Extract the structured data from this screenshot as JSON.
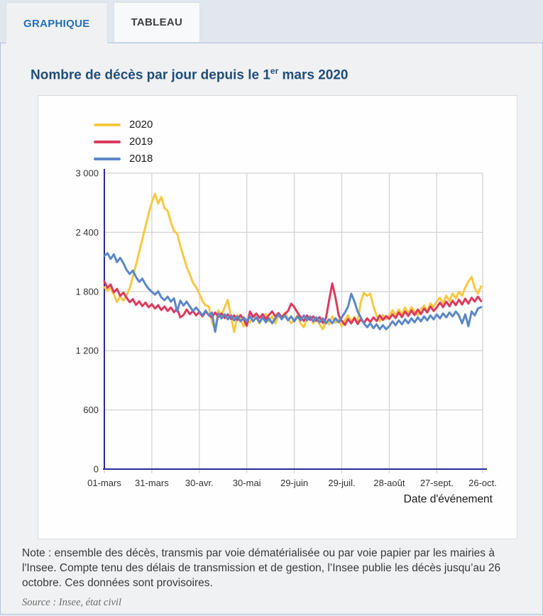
{
  "tabs": [
    {
      "label": "GRAPHIQUE",
      "active": true
    },
    {
      "label": "TABLEAU",
      "active": false
    }
  ],
  "title": {
    "prefix": "Nombre de décès par jour depuis le 1",
    "sup": "er",
    "suffix": " mars 2020"
  },
  "chart_data": {
    "type": "line",
    "title": "Nombre de décès par jour depuis le 1er mars 2020",
    "xlabel": "Date d'événement",
    "ylabel": "",
    "ylim": [
      0,
      3000
    ],
    "y_ticks": [
      0,
      600,
      1200,
      1800,
      2400,
      3000
    ],
    "y_tick_labels": [
      "0",
      "600",
      "1 200",
      "1 800",
      "2 400",
      "3 000"
    ],
    "x_tick_labels": [
      "01-mars",
      "31-mars",
      "30-avr.",
      "30-mai",
      "29-juin",
      "29-juil.",
      "28-août",
      "27-sept.",
      "26-oct."
    ],
    "x_tick_days": [
      0,
      30,
      60,
      90,
      120,
      150,
      180,
      210,
      239
    ],
    "x_total_days": 239,
    "sampling_note": "daily series sampled every 2 days from 01-mars to 26-oct (values estimated from gridlines)",
    "day_step": 2,
    "grid": true,
    "legend_position": "top-left",
    "axis_color": "#2b2b9c",
    "grid_color": "#d4d4d4",
    "series": [
      {
        "name": "2020",
        "color": "#f7c843",
        "values": [
          1843,
          1811,
          1836,
          1769,
          1694,
          1749,
          1707,
          1762,
          1832,
          1948,
          2072,
          2198,
          2331,
          2462,
          2590,
          2704,
          2789,
          2692,
          2758,
          2645,
          2618,
          2504,
          2416,
          2388,
          2262,
          2158,
          2047,
          1975,
          1888,
          1843,
          1781,
          1703,
          1658,
          1649,
          1489,
          1418,
          1611,
          1556,
          1640,
          1716,
          1548,
          1389,
          1562,
          1520,
          1447,
          1519,
          1487,
          1557,
          1536,
          1477,
          1528,
          1571,
          1498,
          1551,
          1476,
          1562,
          1528,
          1588,
          1527,
          1479,
          1512,
          1558,
          1477,
          1438,
          1521,
          1547,
          1478,
          1532,
          1468,
          1417,
          1501,
          1467,
          1548,
          1482,
          1517,
          1449,
          1511,
          1558,
          1496,
          1540,
          1483,
          1698,
          1787,
          1756,
          1779,
          1652,
          1557,
          1498,
          1562,
          1518,
          1558,
          1609,
          1557,
          1617,
          1568,
          1638,
          1577,
          1641,
          1598,
          1561,
          1622,
          1658,
          1601,
          1679,
          1642,
          1701,
          1738,
          1679,
          1758,
          1702,
          1781,
          1729,
          1798,
          1757,
          1842,
          1903,
          1948,
          1837,
          1779,
          1852
        ]
      },
      {
        "name": "2019",
        "color": "#dc3a5e",
        "values": [
          1902,
          1838,
          1871,
          1792,
          1827,
          1756,
          1789,
          1738,
          1692,
          1724,
          1665,
          1701,
          1652,
          1688,
          1641,
          1672,
          1628,
          1662,
          1612,
          1649,
          1602,
          1638,
          1591,
          1627,
          1538,
          1562,
          1618,
          1571,
          1602,
          1558,
          1592,
          1548,
          1598,
          1561,
          1538,
          1588,
          1541,
          1578,
          1531,
          1568,
          1522,
          1558,
          1511,
          1561,
          1518,
          1452,
          1598,
          1541,
          1578,
          1532,
          1571,
          1521,
          1562,
          1598,
          1548,
          1582,
          1541,
          1571,
          1602,
          1678,
          1641,
          1588,
          1541,
          1502,
          1558,
          1512,
          1548,
          1502,
          1541,
          1482,
          1528,
          1712,
          1882,
          1741,
          1562,
          1502,
          1462,
          1521,
          1478,
          1531,
          1471,
          1518,
          1482,
          1528,
          1491,
          1538,
          1501,
          1558,
          1512,
          1551,
          1522,
          1568,
          1531,
          1588,
          1541,
          1598,
          1552,
          1608,
          1561,
          1618,
          1571,
          1628,
          1588,
          1648,
          1602,
          1638,
          1688,
          1641,
          1698,
          1651,
          1708,
          1661,
          1718,
          1668,
          1728,
          1678,
          1738,
          1698,
          1748,
          1702
        ]
      },
      {
        "name": "2018",
        "color": "#5b87c9",
        "values": [
          2162,
          2188,
          2131,
          2178,
          2098,
          2142,
          2088,
          2021,
          1978,
          2012,
          1948,
          1898,
          1931,
          1872,
          1828,
          1798,
          1768,
          1802,
          1741,
          1712,
          1748,
          1698,
          1731,
          1598,
          1708,
          1658,
          1698,
          1648,
          1602,
          1638,
          1598,
          1558,
          1608,
          1558,
          1588,
          1392,
          1578,
          1528,
          1568,
          1518,
          1558,
          1508,
          1548,
          1498,
          1538,
          1498,
          1548,
          1498,
          1538,
          1488,
          1538,
          1488,
          1528,
          1478,
          1528,
          1568,
          1518,
          1558,
          1508,
          1548,
          1498,
          1548,
          1508,
          1558,
          1508,
          1548,
          1498,
          1538,
          1488,
          1528,
          1478,
          1518,
          1478,
          1528,
          1488,
          1538,
          1588,
          1648,
          1778,
          1698,
          1598,
          1538,
          1478,
          1438,
          1478,
          1428,
          1468,
          1418,
          1458,
          1418,
          1448,
          1498,
          1458,
          1508,
          1468,
          1518,
          1478,
          1528,
          1488,
          1538,
          1498,
          1548,
          1508,
          1558,
          1518,
          1568,
          1528,
          1578,
          1538,
          1588,
          1548,
          1598,
          1558,
          1478,
          1568,
          1448,
          1598,
          1558,
          1628,
          1642
        ]
      }
    ]
  },
  "note": "Note : ensemble des décès, transmis par voie dématérialisée ou par voie papier par les mairies à l'Insee. Compte tenu des délais de transmission et de gestion, l’Insee publie les décès jusqu’au 26 octobre. Ces données sont provisoires.",
  "source": "Source : Insee, état civil"
}
